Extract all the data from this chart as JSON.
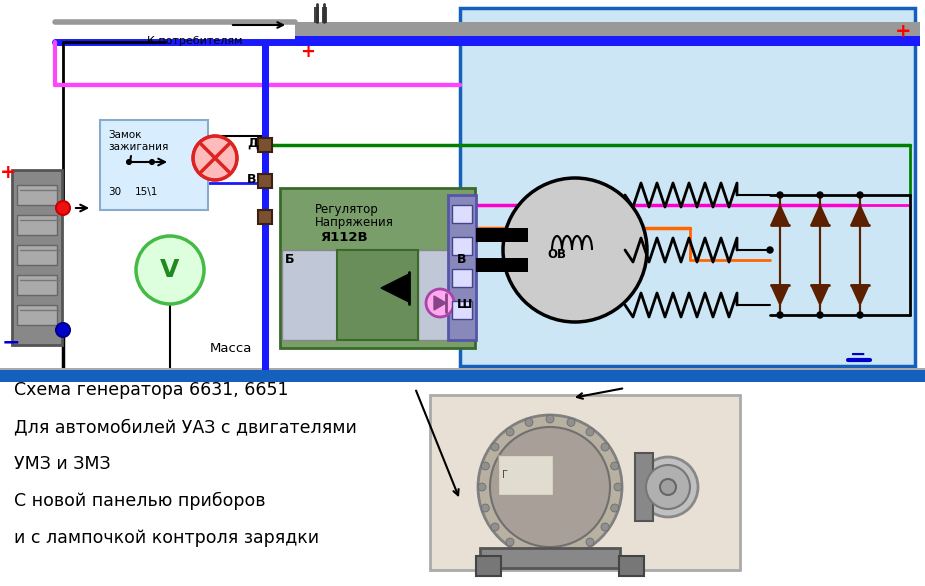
{
  "bg_color": "#ffffff",
  "diagram_bg": "#cce6f5",
  "title_lines": [
    "Схема генератора 6631, 6651",
    "Для автомобилей УАЗ с двигателями",
    "УМЗ и ЗМЗ",
    "С новой панелью приборов",
    "и с лампочкой контроля зарядки"
  ],
  "plus_color": "#ff0000",
  "minus_color": "#0000cc",
  "blue_wire": "#1a1aff",
  "green_wire": "#008000",
  "pink_wire": "#ff00cc",
  "orange_wire": "#ff6600",
  "gray_bus": "#888888",
  "black_wire": "#111111",
  "dark_red_wire": "#800000",
  "border_blue": "#1560bd",
  "diode_color": "#5a2000",
  "regulator_bg": "#7a9e6a",
  "regulator_inner": "#6a8e5a",
  "connector_bg": "#8888bb",
  "batt_gray": "#909090",
  "ignition_bg": "#d8eeff",
  "volt_green": "#44bb44",
  "lamp_red": "#dd2222",
  "pink_wire_top": "#ff44ff"
}
